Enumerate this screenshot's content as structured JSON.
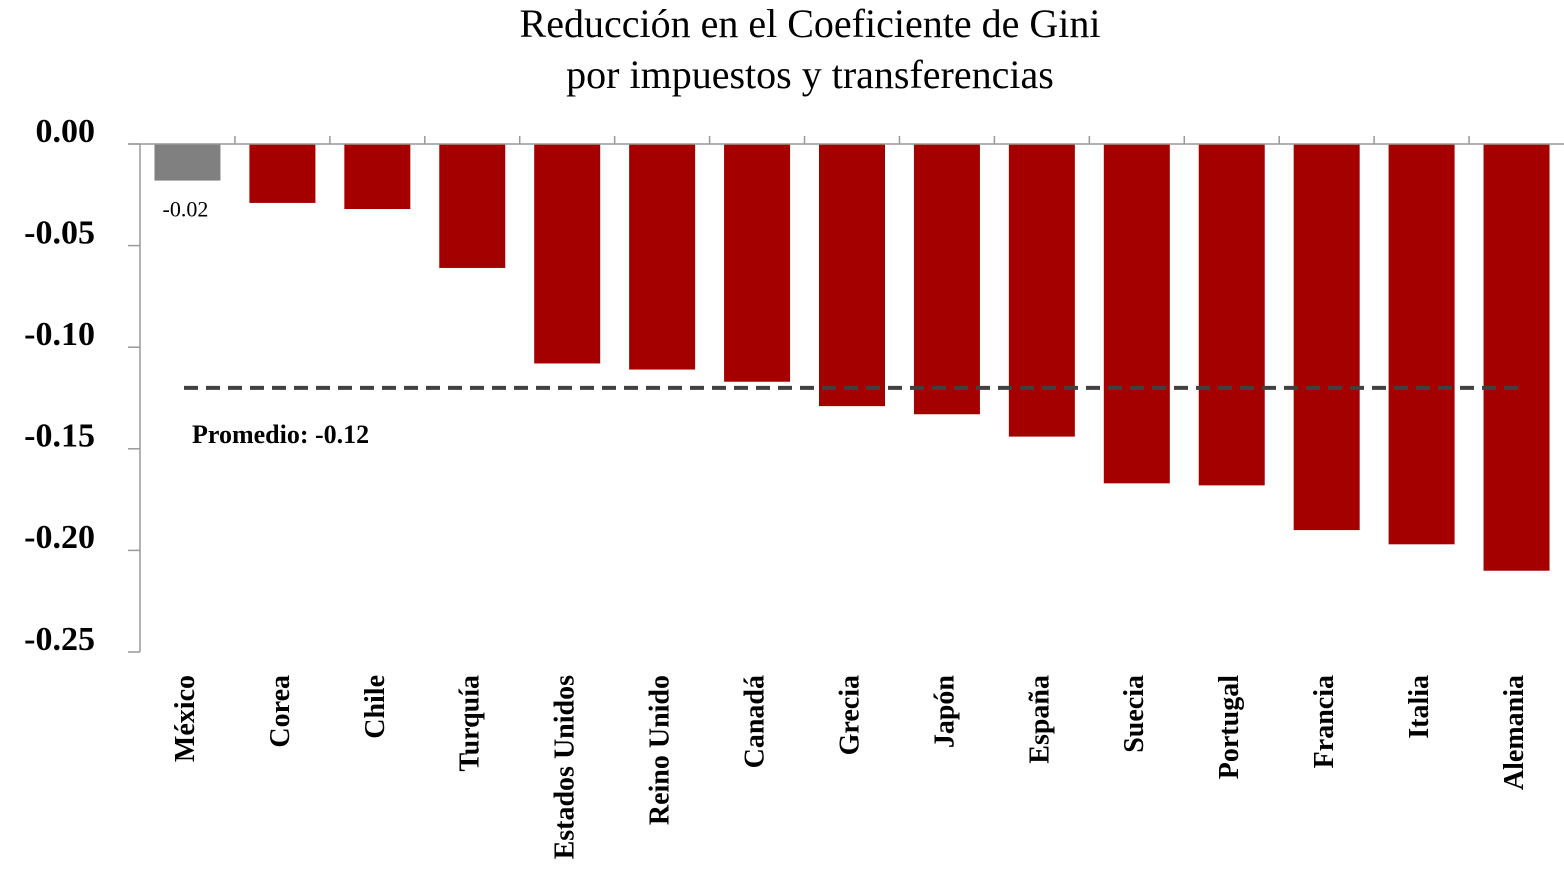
{
  "chart_data": {
    "type": "bar",
    "title": [
      "Reducción en el Coeficiente de Gini",
      "por impuestos y transferencias"
    ],
    "categories": [
      "México",
      "Corea",
      "Chile",
      "Turquía",
      "Estados Unidos",
      "Reino Unido",
      "Canadá",
      "Grecia",
      "Japón",
      "España",
      "Suecia",
      "Portugal",
      "Francia",
      "Italia",
      "Alemania"
    ],
    "values": [
      -0.018,
      -0.029,
      -0.032,
      -0.061,
      -0.108,
      -0.111,
      -0.117,
      -0.129,
      -0.133,
      -0.144,
      -0.167,
      -0.168,
      -0.19,
      -0.197,
      -0.21
    ],
    "value_labels": [
      "-0.02",
      null,
      null,
      null,
      null,
      null,
      null,
      null,
      null,
      null,
      null,
      null,
      null,
      null,
      null
    ],
    "colors": [
      "#808080",
      "#a50000",
      "#a50000",
      "#a50000",
      "#a50000",
      "#a50000",
      "#a50000",
      "#a50000",
      "#a50000",
      "#a50000",
      "#a50000",
      "#a50000",
      "#a50000",
      "#a50000",
      "#a50000"
    ],
    "ylim": [
      -0.25,
      0
    ],
    "yticks": [
      {
        "value": 0,
        "label": "0.00"
      },
      {
        "value": -0.05,
        "label": "-0.05"
      },
      {
        "value": -0.1,
        "label": "-0.10"
      },
      {
        "value": -0.15,
        "label": "-0.15"
      },
      {
        "value": -0.2,
        "label": "-0.20"
      },
      {
        "value": -0.25,
        "label": "-0.25"
      }
    ],
    "average": {
      "value": -0.12,
      "label": "Promedio: -0.12",
      "color": "#404040"
    },
    "grid": false
  }
}
